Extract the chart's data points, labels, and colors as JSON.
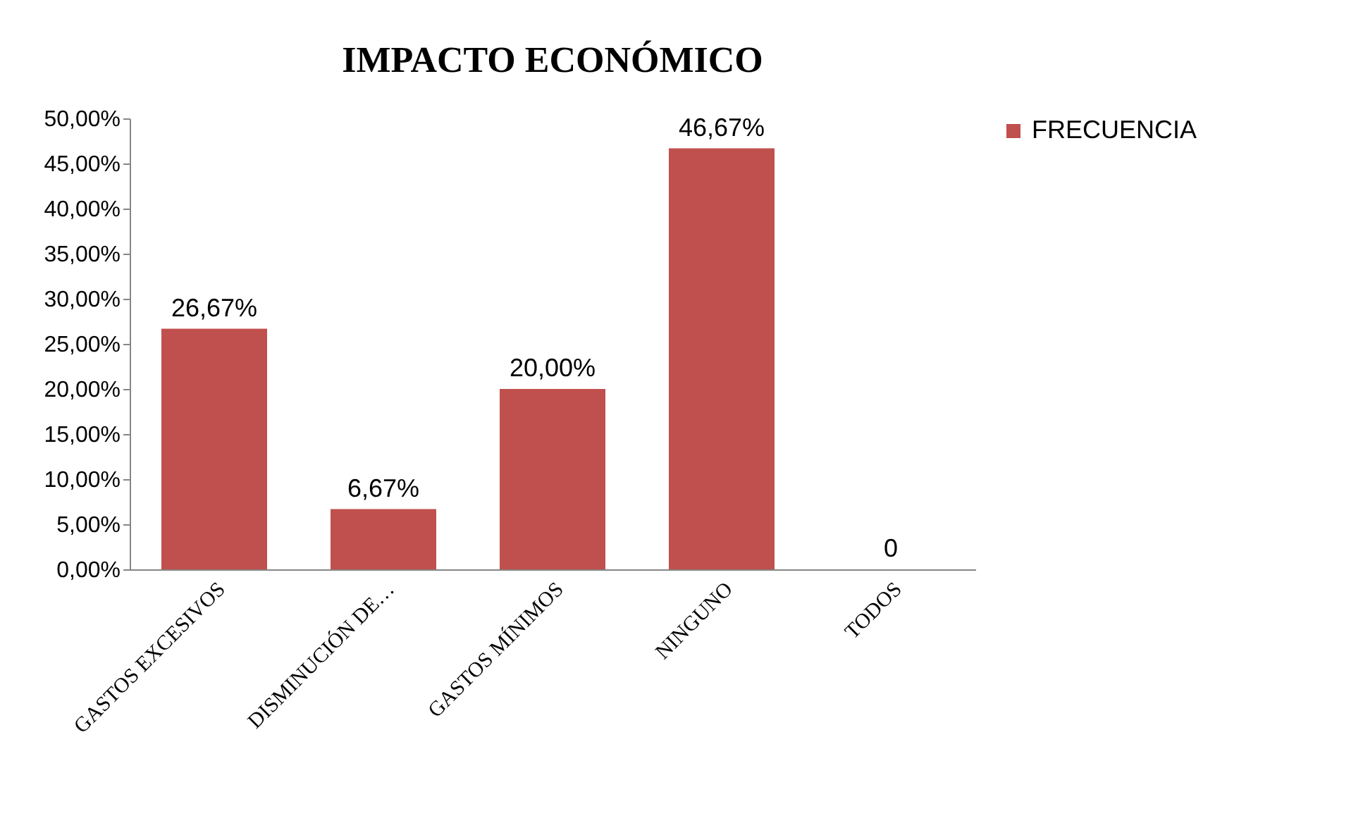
{
  "chart_data": {
    "type": "bar",
    "title": "IMPACTO ECONÓMICO",
    "categories": [
      "GASTOS EXCESIVOS",
      "DISMINUCIÓN DE…",
      "GASTOS MÍNIMOS",
      "NINGUNO",
      "TODOS"
    ],
    "series": [
      {
        "name": "FRECUENCIA",
        "color": "#c0504d",
        "values": [
          26.67,
          6.67,
          20.0,
          46.67,
          0
        ],
        "value_labels": [
          "26,67%",
          "6,67%",
          "20,00%",
          "46,67%",
          "0"
        ]
      }
    ],
    "ylim": [
      0,
      50
    ],
    "yticks": [
      {
        "value": 0,
        "label": "0,00%"
      },
      {
        "value": 5,
        "label": "5,00%"
      },
      {
        "value": 10,
        "label": "10,00%"
      },
      {
        "value": 15,
        "label": "15,00%"
      },
      {
        "value": 20,
        "label": "20,00%"
      },
      {
        "value": 25,
        "label": "25,00%"
      },
      {
        "value": 30,
        "label": "30,00%"
      },
      {
        "value": 35,
        "label": "35,00%"
      },
      {
        "value": 40,
        "label": "40,00%"
      },
      {
        "value": 45,
        "label": "45,00%"
      },
      {
        "value": 50,
        "label": "50,00%"
      }
    ],
    "grid": false,
    "legend": "right"
  }
}
